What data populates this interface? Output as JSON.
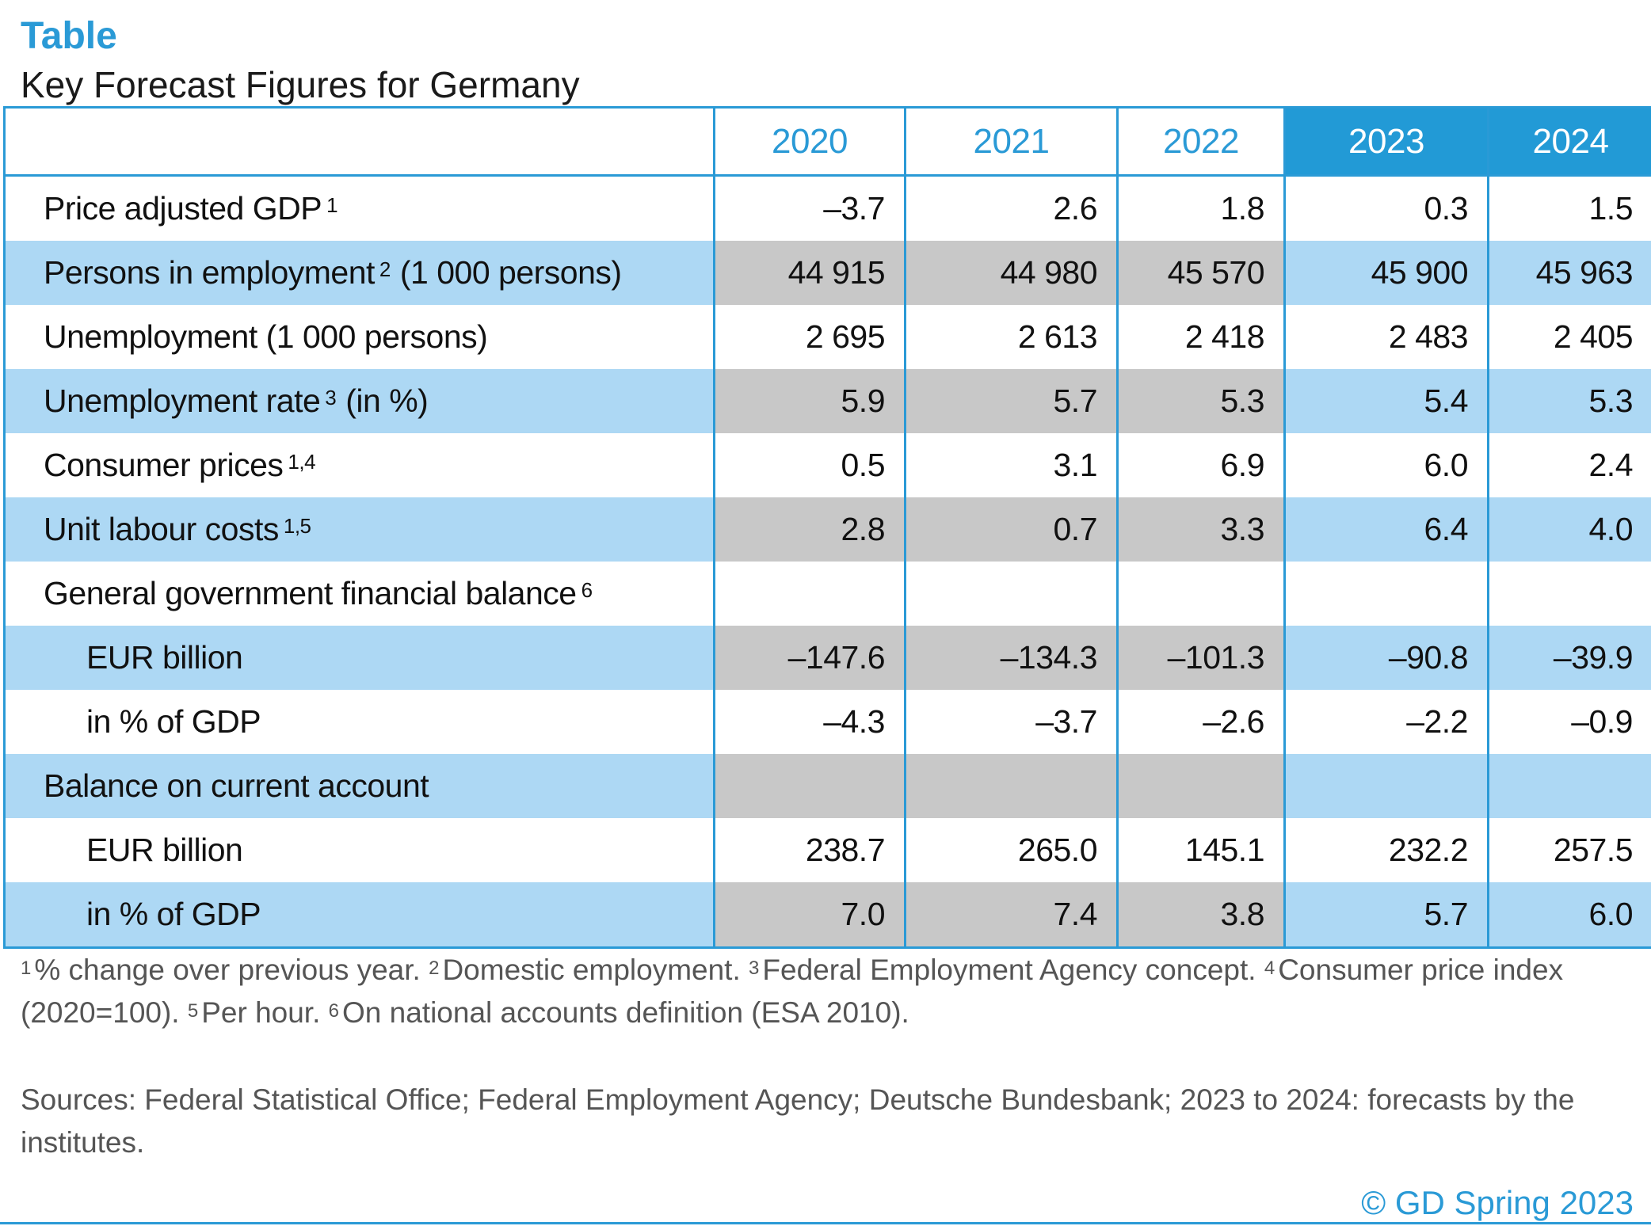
{
  "header": {
    "label": "Table",
    "title": "Key Forecast Figures for Germany"
  },
  "chart_data": {
    "type": "table",
    "columns": [
      "2020",
      "2021",
      "2022",
      "2023",
      "2024"
    ],
    "highlighted_columns": [
      "2023",
      "2024"
    ],
    "rows": [
      {
        "label": "Price adjusted GDP",
        "note": "1",
        "values": [
          "–3.7",
          "2.6",
          "1.8",
          "0.3",
          "1.5"
        ]
      },
      {
        "label": "Persons in employment",
        "note": "2",
        "suffix": "(1 000 persons)",
        "values": [
          "44 915",
          "44 980",
          "45 570",
          "45 900",
          "45 963"
        ]
      },
      {
        "label": "Unemployment (1 000 persons)",
        "values": [
          "2 695",
          "2 613",
          "2 418",
          "2 483",
          "2 405"
        ]
      },
      {
        "label": "Unemployment rate",
        "note": "3",
        "suffix": "(in %)",
        "values": [
          "5.9",
          "5.7",
          "5.3",
          "5.4",
          "5.3"
        ]
      },
      {
        "label": "Consumer prices",
        "note": "1,4",
        "values": [
          "0.5",
          "3.1",
          "6.9",
          "6.0",
          "2.4"
        ]
      },
      {
        "label": "Unit labour costs",
        "note": "1,5",
        "values": [
          "2.8",
          "0.7",
          "3.3",
          "6.4",
          "4.0"
        ]
      },
      {
        "label": "General government financial balance",
        "note": "6",
        "values": [
          "",
          "",
          "",
          "",
          ""
        ]
      },
      {
        "label": "EUR billion",
        "indent": true,
        "values": [
          "–147.6",
          "–134.3",
          "–101.3",
          "–90.8",
          "–39.9"
        ]
      },
      {
        "label": "in % of GDP",
        "indent": true,
        "values": [
          "–4.3",
          "–3.7",
          "–2.6",
          "–2.2",
          "–0.9"
        ]
      },
      {
        "label": "Balance on current account",
        "values": [
          "",
          "",
          "",
          "",
          ""
        ]
      },
      {
        "label": "EUR billion",
        "indent": true,
        "values": [
          "238.7",
          "265.0",
          "145.1",
          "232.2",
          "257.5"
        ]
      },
      {
        "label": "in % of GDP",
        "indent": true,
        "values": [
          "7.0",
          "7.4",
          "3.8",
          "5.7",
          "6.0"
        ]
      }
    ]
  },
  "footnotes": [
    {
      "num": "1",
      "text": "% change over previous year."
    },
    {
      "num": "2",
      "text": "Domestic employment."
    },
    {
      "num": "3",
      "text": "Federal Employment Agency concept."
    },
    {
      "num": "4",
      "text": "Consumer price index (2020=100)."
    },
    {
      "num": "5",
      "text": "Per hour."
    },
    {
      "num": "6",
      "text": "On national accounts definition (ESA 2010)."
    }
  ],
  "sources": "Sources: Federal Statistical Office; Federal Employment Agency; Deutsche Bundesbank; 2023 to 2024: forecasts by the institutes.",
  "copyright": "© GD Spring 2023",
  "colors": {
    "accent": "#2a9ad6",
    "band": "#add8f4",
    "history_band": "#c8c8c8"
  }
}
